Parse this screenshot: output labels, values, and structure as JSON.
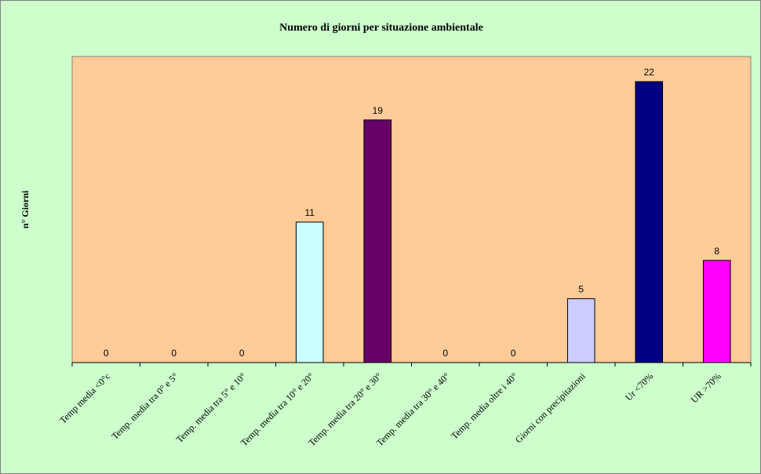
{
  "chart_data": {
    "type": "bar",
    "title": "Numero di giorni per situazione ambientale",
    "xlabel": "",
    "ylabel": "n° Giorni",
    "categories": [
      "Temp media <0°c",
      "Temp. media tra 0° e 5°",
      "Temp. media tra 5° e 10°",
      "Temp. media tra 10° e 20°",
      "Temp. media tra 20° e 30°",
      "Temp. media tra 30° e 40°",
      "Temp. media oltre i 40°",
      "Giorni con precipitazioni",
      "Ur <70%",
      "UR >70%"
    ],
    "values": [
      0,
      0,
      0,
      11,
      19,
      0,
      0,
      5,
      22,
      8
    ],
    "ylim": [
      0,
      22
    ],
    "grid": false,
    "legend": "none",
    "colors": {
      "page_background": "#ccffcc",
      "plot_background": "#ffcc99",
      "bars": [
        "#ccffff",
        "#ccffff",
        "#ccffff",
        "#ccffff",
        "#660066",
        "#ccffff",
        "#ccffff",
        "#ccccff",
        "#000080",
        "#ff00ff"
      ]
    }
  }
}
